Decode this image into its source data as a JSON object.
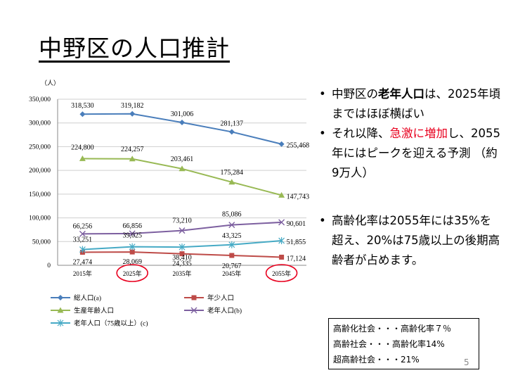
{
  "slide": {
    "title": "中野区の人口推計",
    "page_number": "5"
  },
  "bullets": [
    {
      "parts": [
        {
          "text": "中野区の",
          "style": "normal"
        },
        {
          "text": "老年人口",
          "style": "bold"
        },
        {
          "text": "は、2025年頃まではほぼ横ばい",
          "style": "normal"
        }
      ]
    },
    {
      "parts": [
        {
          "text": "それ以降、",
          "style": "normal"
        },
        {
          "text": "急激に増加",
          "style": "red"
        },
        {
          "text": "し、2055年にはピークを迎える予測 （約9万人）",
          "style": "normal"
        }
      ]
    },
    {
      "parts": [
        {
          "text": "高齢化率は2055年には35%を超え、20%は75歳以上の後期高齢者が占めます。",
          "style": "normal"
        }
      ]
    }
  ],
  "definitions": [
    "高齢化社会・・・高齢化率７％",
    "高齢社会・・・高齢化率14%",
    "超高齢社会・・・21%"
  ],
  "colors": {
    "total": "#4a7ebb",
    "youth": "#be4b48",
    "working": "#98b954",
    "elderly": "#7d60a0",
    "elderly75": "#46aac5",
    "highlight": "#e8001e",
    "grid": "#cfcfcf",
    "axis": "#8a8a8a"
  },
  "chart_data": {
    "type": "line",
    "y_unit_label": "（人）",
    "categories": [
      "2015年",
      "2025年",
      "2035年",
      "2045年",
      "2055年"
    ],
    "highlighted_categories": [
      "2025年",
      "2055年"
    ],
    "ylim": [
      0,
      350000
    ],
    "yticks": [
      0,
      50000,
      100000,
      150000,
      200000,
      250000,
      300000,
      350000
    ],
    "ytick_labels": [
      "0",
      "50,000",
      "100,000",
      "150,000",
      "200,000",
      "250,000",
      "300,000",
      "350,000"
    ],
    "grid": true,
    "series": [
      {
        "key": "total",
        "name": "総人口(a)",
        "marker": "diamond",
        "values": [
          318530,
          319182,
          301006,
          281137,
          255468
        ],
        "labels": [
          "318,530",
          "319,182",
          "301,006",
          "281,137",
          "255,468"
        ]
      },
      {
        "key": "youth",
        "name": "年少人口",
        "marker": "square",
        "values": [
          27474,
          28069,
          24335,
          20767,
          17124
        ],
        "labels": [
          "27,474",
          "28,069",
          "24,335",
          "20,767",
          "17,124"
        ]
      },
      {
        "key": "working",
        "name": "生産年齢人口",
        "marker": "triangle",
        "values": [
          224800,
          224257,
          203461,
          175284,
          147743
        ],
        "labels": [
          "224,800",
          "224,257",
          "203,461",
          "175,284",
          "147,743"
        ]
      },
      {
        "key": "elderly",
        "name": "老年人口(b)",
        "marker": "x",
        "values": [
          66256,
          66856,
          73210,
          85086,
          90601
        ],
        "labels": [
          "66,256",
          "66,856",
          "73,210",
          "85,086",
          "90,601"
        ]
      },
      {
        "key": "elderly75",
        "name": "老年人口（75歳以上）(c)",
        "marker": "star",
        "values": [
          33251,
          39025,
          38410,
          43325,
          51855
        ],
        "labels": [
          "33,251",
          "39,025",
          "38,410",
          "43,325",
          "51,855"
        ]
      }
    ],
    "legend_position": "bottom"
  }
}
